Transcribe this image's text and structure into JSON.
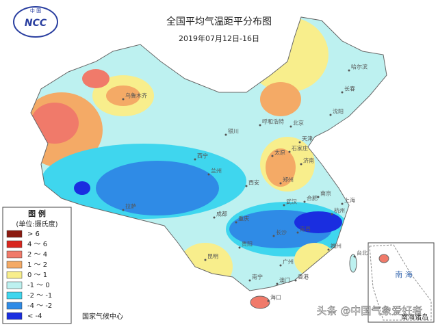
{
  "logo": {
    "top_text": "中 国",
    "acronym": "NCC"
  },
  "header": {
    "title": "全国平均气温距平分布图",
    "subtitle": "2019年07月12日-16日"
  },
  "legend": {
    "title": "图 例",
    "unit": "(单位:摄氏度)",
    "items": [
      {
        "label": "> 6",
        "color": "#8b1a10"
      },
      {
        "label": "4 ～ 6",
        "color": "#d8261e"
      },
      {
        "label": "2 ～ 4",
        "color": "#f07a6a"
      },
      {
        "label": "1 ～ 2",
        "color": "#f4aa66"
      },
      {
        "label": "0 ～ 1",
        "color": "#f8ee8c"
      },
      {
        "label": "-1 ～ 0",
        "color": "#bdf1f0"
      },
      {
        "label": "-2 ～ -1",
        "color": "#3fd6ee"
      },
      {
        "label": "-4 ～ -2",
        "color": "#2f8be6"
      },
      {
        "label": "< -4",
        "color": "#1a2ee0"
      }
    ]
  },
  "cities": [
    "乌鲁木齐",
    "哈尔滨",
    "长春",
    "沈阳",
    "呼和浩特",
    "北京",
    "天津",
    "银川",
    "太原",
    "石家庄",
    "济南",
    "西宁",
    "兰州",
    "西安",
    "郑州",
    "拉萨",
    "成都",
    "重庆",
    "武汉",
    "合肥",
    "南京",
    "上海",
    "杭州",
    "南昌",
    "长沙",
    "贵阳",
    "昆明",
    "福州",
    "台北",
    "广州",
    "南宁",
    "澳门",
    "香港",
    "海口"
  ],
  "inset": {
    "sea_label": "南 海",
    "islands_label": "南海诸岛"
  },
  "footer": {
    "source": "国家气候中心",
    "watermark": "头条 @中国气象爱好者"
  }
}
